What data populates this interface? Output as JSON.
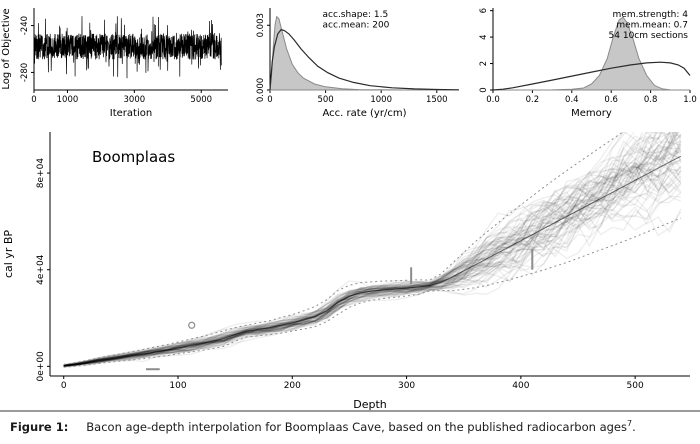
{
  "caption": {
    "label": "Figure 1:",
    "text": "Bacon age-depth interpolation for Boomplaas Cave, based on the published radiocarbon ages",
    "superscript": "7",
    "period": "."
  },
  "colors": {
    "trace": "#000000",
    "prior_line": "#2b2b2b",
    "posterior_fill": "#c4c4c4",
    "posterior_edge": "#8a8a8a",
    "cloud": "#000000",
    "envelope": "#8f8f8f",
    "outlier": "#8c8c8c",
    "annotation": "#9e9e9e"
  },
  "chart_data": [
    {
      "id": "trace",
      "type": "line",
      "title": "",
      "xlabel": "Iteration",
      "ylabel": "Log of Objective",
      "xlim": [
        0,
        5800
      ],
      "ylim": [
        -295,
        -225
      ],
      "xticks": [
        0,
        1000,
        3000,
        5000
      ],
      "yticks": [
        -280,
        -240
      ],
      "series_summary": {
        "n": 1200,
        "mean": -258,
        "core_halfwidth": 11,
        "spike_halfwidth": 27,
        "spike_fraction": 0.1
      }
    },
    {
      "id": "acc-rate",
      "type": "area",
      "title": "",
      "xlabel": "Acc. rate (yr/cm)",
      "ylabel": "",
      "xlim": [
        0,
        1700
      ],
      "ylim": [
        0,
        0.0038
      ],
      "xticks": [
        0,
        500,
        1000,
        1500
      ],
      "yticks": [
        0.0,
        0.003
      ],
      "ytick_labels": [
        "0.000",
        "0.003"
      ],
      "annotations": [
        "acc.shape:  1.5",
        "acc.mean:  200"
      ],
      "annotation_anchor": "start",
      "posterior": {
        "x": [
          0,
          15,
          30,
          45,
          60,
          80,
          100,
          125,
          150,
          200,
          250,
          300,
          400,
          500,
          650,
          800,
          1000,
          1300,
          1700
        ],
        "y": [
          0,
          0.0008,
          0.002,
          0.003,
          0.0034,
          0.0033,
          0.0029,
          0.0024,
          0.0019,
          0.0012,
          0.0008,
          0.00055,
          0.00028,
          0.00015,
          6e-05,
          2e-05,
          1e-05,
          0,
          0
        ]
      },
      "prior": {
        "x": [
          0,
          20,
          40,
          70,
          100,
          130,
          170,
          220,
          280,
          350,
          430,
          520,
          620,
          750,
          900,
          1100,
          1300,
          1500,
          1700
        ],
        "y": [
          0,
          0.0013,
          0.002,
          0.0026,
          0.0028,
          0.00275,
          0.0026,
          0.0023,
          0.0019,
          0.0015,
          0.0011,
          0.0008,
          0.00055,
          0.00035,
          0.0002,
          0.0001,
          5e-05,
          2.5e-05,
          1e-05
        ]
      }
    },
    {
      "id": "memory",
      "type": "area",
      "title": "",
      "xlabel": "Memory",
      "ylabel": "",
      "xlim": [
        0,
        1
      ],
      "ylim": [
        0,
        6.2
      ],
      "xticks": [
        0,
        0.2,
        0.4,
        0.6,
        0.8,
        1.0
      ],
      "xtick_labels": [
        "0.0",
        "0.2",
        "0.4",
        "0.6",
        "0.8",
        "1.0"
      ],
      "yticks": [
        0,
        2,
        4,
        6
      ],
      "annotations": [
        "mem.strength: 4",
        "mem.mean: 0.7",
        "54 10cm sections"
      ],
      "annotation_anchor": "end",
      "posterior": {
        "x": [
          0,
          0.3,
          0.4,
          0.46,
          0.5,
          0.54,
          0.58,
          0.61,
          0.64,
          0.66,
          0.68,
          0.71,
          0.74,
          0.78,
          0.82,
          0.86,
          0.9,
          1.0
        ],
        "y": [
          0,
          0.01,
          0.05,
          0.15,
          0.45,
          1.1,
          2.4,
          4.0,
          5.3,
          5.5,
          5.1,
          3.9,
          2.4,
          1.1,
          0.35,
          0.08,
          0.01,
          0
        ]
      },
      "prior": {
        "x": [
          0,
          0.05,
          0.1,
          0.2,
          0.3,
          0.4,
          0.5,
          0.6,
          0.7,
          0.78,
          0.85,
          0.9,
          0.94,
          0.97,
          1.0
        ],
        "y": [
          0,
          0.06,
          0.17,
          0.45,
          0.75,
          1.05,
          1.35,
          1.65,
          1.9,
          2.05,
          2.1,
          2.05,
          1.9,
          1.65,
          1.1
        ]
      }
    },
    {
      "id": "age-depth",
      "type": "area",
      "title": "Boomplaas",
      "xlabel": "Depth",
      "ylabel": "cal yr BP",
      "xlim": [
        -12,
        548
      ],
      "ylim": [
        -4000,
        97000
      ],
      "xticks": [
        0,
        100,
        200,
        300,
        400,
        500
      ],
      "yticks": [
        0,
        40000,
        80000
      ],
      "ytick_labels": [
        "0e+00",
        "4e+04",
        "8e+04"
      ],
      "median": {
        "depth": [
          0,
          10,
          20,
          30,
          40,
          50,
          60,
          70,
          80,
          90,
          100,
          110,
          120,
          130,
          140,
          150,
          160,
          170,
          180,
          190,
          200,
          210,
          220,
          230,
          240,
          250,
          260,
          270,
          280,
          290,
          300,
          310,
          320,
          330,
          340,
          350,
          360,
          370,
          380,
          390,
          400,
          410,
          420,
          430,
          440,
          450,
          460,
          470,
          480,
          490,
          500,
          510,
          520,
          530,
          540
        ],
        "age": [
          200,
          800,
          1500,
          2300,
          3000,
          3700,
          4400,
          5100,
          5900,
          6700,
          7600,
          8500,
          9400,
          10400,
          11500,
          13200,
          14600,
          15300,
          16000,
          17000,
          18000,
          19200,
          20600,
          23000,
          26500,
          29000,
          30500,
          31200,
          31700,
          32000,
          32400,
          32800,
          33400,
          34800,
          37000,
          39500,
          42000,
          44500,
          47000,
          49500,
          52000,
          54500,
          57000,
          59500,
          62000,
          64500,
          67000,
          69500,
          72000,
          74500,
          77000,
          79500,
          82000,
          84500,
          87000
        ],
        "sigma": [
          300,
          400,
          500,
          600,
          700,
          800,
          900,
          1000,
          1100,
          1200,
          1300,
          1400,
          1500,
          1600,
          1700,
          1500,
          1300,
          1400,
          1500,
          1700,
          1800,
          2000,
          2200,
          2400,
          2600,
          2400,
          2200,
          2000,
          1900,
          1800,
          1700,
          1600,
          1200,
          1800,
          3000,
          4000,
          5000,
          5800,
          6500,
          7200,
          7800,
          8400,
          9000,
          9500,
          10000,
          10400,
          10800,
          11200,
          11600,
          12000,
          12300,
          12600,
          12900,
          13200,
          13500
        ]
      },
      "cloud": {
        "n_curves": 70,
        "opacity": 0.07,
        "spread_scale": 0.8,
        "envelope_scale": 1.9
      },
      "outliers": {
        "circle": {
          "depth": 112,
          "age": 17000
        },
        "hbar": {
          "depth": [
            72,
            84
          ],
          "age": -1200
        },
        "vbars": [
          {
            "depth": 304,
            "age": [
              34000,
              41000
            ]
          },
          {
            "depth": 410,
            "age": [
              40000,
              48500
            ]
          }
        ]
      }
    }
  ]
}
